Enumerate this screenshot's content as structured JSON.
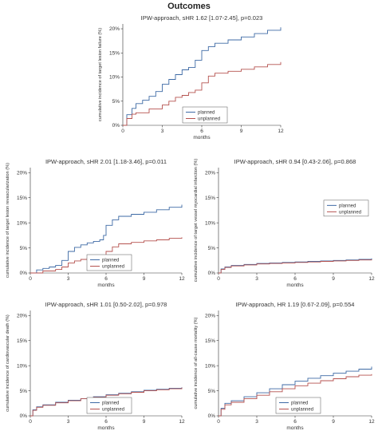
{
  "header": {
    "title": "Outcomes"
  },
  "colors": {
    "planned": "#3e6aa5",
    "unplanned": "#b5524f"
  },
  "chart_data": [
    {
      "type": "line",
      "title": "IPW-approach, sHR 1.62 [1.07-2.45], p=0.023",
      "xlabel": "months",
      "ylabel": "cumulative incidence of target lesion failure (%)",
      "xlim": [
        0,
        12
      ],
      "ylim": [
        0,
        21
      ],
      "xticks": [
        "0",
        "3",
        "6",
        "9",
        "12"
      ],
      "yticks": [
        "0%",
        "5%",
        "10%",
        "15%",
        "20%"
      ],
      "legend": {
        "position": "bottom-center",
        "entries": [
          "planned",
          "unplanned"
        ]
      },
      "series": [
        {
          "name": "planned",
          "x": [
            0,
            0.3,
            0.7,
            1,
            1.5,
            2,
            2.5,
            3,
            3.5,
            4,
            4.5,
            5,
            5.5,
            6,
            6.5,
            7,
            8,
            9,
            10,
            11,
            12
          ],
          "y": [
            0,
            2.2,
            3.5,
            4.5,
            5.2,
            6,
            7,
            8.5,
            9.5,
            10.5,
            11.5,
            12,
            13.5,
            15.5,
            16.3,
            17,
            17.7,
            18.3,
            19,
            19.7,
            20.3
          ]
        },
        {
          "name": "unplanned",
          "x": [
            0,
            0.3,
            0.7,
            1,
            2,
            3,
            3.5,
            4,
            4.5,
            5,
            5.5,
            6,
            6.5,
            7,
            8,
            9,
            10,
            11,
            12
          ],
          "y": [
            0,
            1.4,
            2.3,
            2.6,
            3.4,
            4.2,
            5,
            5.8,
            6.2,
            6.8,
            7.3,
            8.8,
            10.2,
            10.8,
            11.2,
            11.6,
            12.1,
            12.6,
            13.1
          ]
        }
      ]
    },
    {
      "type": "line",
      "title": "IPW-approach, sHR 2.01 [1.18-3.46], p=0.011",
      "xlabel": "months",
      "ylabel": "cumulative incidence of target lesion revascularization (%)",
      "xlim": [
        0,
        12
      ],
      "ylim": [
        0,
        21
      ],
      "xticks": [
        "0",
        "3",
        "6",
        "9",
        "12"
      ],
      "yticks": [
        "0%",
        "5%",
        "10%",
        "15%",
        "20%"
      ],
      "legend": {
        "position": "bottom-center",
        "entries": [
          "planned",
          "unplanned"
        ]
      },
      "series": [
        {
          "name": "planned",
          "x": [
            0,
            0.5,
            1,
            1.5,
            2,
            2.5,
            3,
            3.5,
            4,
            4.5,
            5,
            5.5,
            5.8,
            6,
            6.5,
            7,
            8,
            9,
            10,
            11,
            12
          ],
          "y": [
            0,
            0.6,
            0.9,
            1.2,
            1.5,
            2.5,
            4.3,
            5.1,
            5.6,
            6,
            6.3,
            6.6,
            7.5,
            9.5,
            10.6,
            11.3,
            11.7,
            12.1,
            12.6,
            13.1,
            13.6
          ]
        },
        {
          "name": "unplanned",
          "x": [
            0,
            1,
            2,
            2.5,
            3,
            3.5,
            4,
            4.5,
            5,
            5.5,
            6,
            6.5,
            7,
            8,
            9,
            10,
            11,
            12
          ],
          "y": [
            0,
            0.4,
            0.7,
            1.2,
            2,
            2.4,
            2.7,
            3,
            3.3,
            3.6,
            4.3,
            5.2,
            5.8,
            6.1,
            6.4,
            6.6,
            6.9,
            7.1
          ]
        }
      ]
    },
    {
      "type": "line",
      "title": "IPW-approach, sHR 0.94 [0.43-2.06], p=0.868",
      "xlabel": "months",
      "ylabel": "cumulative incidence of target vessel myocardial infarction (%)",
      "xlim": [
        0,
        12
      ],
      "ylim": [
        0,
        21
      ],
      "xticks": [
        "0",
        "3",
        "6",
        "9",
        "12"
      ],
      "yticks": [
        "0%",
        "5%",
        "10%",
        "15%",
        "20%"
      ],
      "legend": {
        "position": "top-right",
        "entries": [
          "planned",
          "unplanned"
        ]
      },
      "series": [
        {
          "name": "planned",
          "x": [
            0,
            0.2,
            0.5,
            1,
            2,
            3,
            4,
            5,
            6,
            7,
            8,
            9,
            10,
            11,
            12
          ],
          "y": [
            0,
            0.8,
            1.2,
            1.5,
            1.7,
            1.9,
            2.0,
            2.1,
            2.2,
            2.3,
            2.4,
            2.5,
            2.6,
            2.7,
            2.9
          ]
        },
        {
          "name": "unplanned",
          "x": [
            0,
            0.2,
            0.5,
            1,
            2,
            3,
            4,
            5,
            6,
            7,
            8,
            9,
            10,
            11,
            12
          ],
          "y": [
            0,
            0.7,
            1.1,
            1.4,
            1.6,
            1.8,
            1.9,
            2.0,
            2.1,
            2.2,
            2.3,
            2.4,
            2.5,
            2.6,
            2.7
          ]
        }
      ]
    },
    {
      "type": "line",
      "title": "IPW-approach, sHR 1.01 [0.50-2.02], p=0.978",
      "xlabel": "months",
      "ylabel": "cumulative incidence of cardiovascular death (%)",
      "xlim": [
        0,
        12
      ],
      "ylim": [
        0,
        21
      ],
      "xticks": [
        "0",
        "3",
        "6",
        "9",
        "12"
      ],
      "yticks": [
        "0%",
        "5%",
        "10%",
        "15%",
        "20%"
      ],
      "legend": {
        "position": "bottom-center",
        "entries": [
          "planned",
          "unplanned"
        ]
      },
      "series": [
        {
          "name": "planned",
          "x": [
            0,
            0.2,
            0.5,
            1,
            2,
            3,
            4,
            5,
            6,
            7,
            8,
            9,
            10,
            11,
            12
          ],
          "y": [
            0,
            1.2,
            1.8,
            2.2,
            2.7,
            3.1,
            3.4,
            3.8,
            4.2,
            4.5,
            4.8,
            5.1,
            5.3,
            5.5,
            5.7
          ]
        },
        {
          "name": "unplanned",
          "x": [
            0,
            0.2,
            0.5,
            1,
            2,
            3,
            4,
            5,
            6,
            7,
            8,
            9,
            10,
            11,
            12
          ],
          "y": [
            0,
            1.1,
            1.7,
            2.1,
            2.6,
            3.0,
            3.4,
            3.7,
            4.1,
            4.4,
            4.7,
            5.0,
            5.2,
            5.4,
            5.6
          ]
        }
      ]
    },
    {
      "type": "line",
      "title": "IPW-approach, HR 1.19 [0.67-2.09], p=0.554",
      "xlabel": "months",
      "ylabel": "cumulative incidence of all-cause mortality (%)",
      "xlim": [
        0,
        12
      ],
      "ylim": [
        0,
        21
      ],
      "xticks": [
        "0",
        "3",
        "6",
        "9",
        "12"
      ],
      "yticks": [
        "0%",
        "5%",
        "10%",
        "15%",
        "20%"
      ],
      "legend": {
        "position": "bottom-center",
        "entries": [
          "planned",
          "unplanned"
        ]
      },
      "series": [
        {
          "name": "planned",
          "x": [
            0,
            0.2,
            0.5,
            1,
            2,
            3,
            4,
            5,
            6,
            7,
            8,
            9,
            10,
            11,
            12
          ],
          "y": [
            0,
            1.5,
            2.5,
            3,
            3.8,
            4.6,
            5.4,
            6.2,
            6.9,
            7.5,
            8,
            8.5,
            8.9,
            9.3,
            9.8
          ]
        },
        {
          "name": "unplanned",
          "x": [
            0,
            0.2,
            0.5,
            1,
            2,
            3,
            4,
            5,
            6,
            7,
            8,
            9,
            10,
            11,
            12
          ],
          "y": [
            0,
            1.3,
            2.2,
            2.7,
            3.4,
            4.1,
            4.8,
            5.4,
            6.0,
            6.5,
            7.0,
            7.4,
            7.8,
            8.1,
            8.3
          ]
        }
      ]
    }
  ]
}
